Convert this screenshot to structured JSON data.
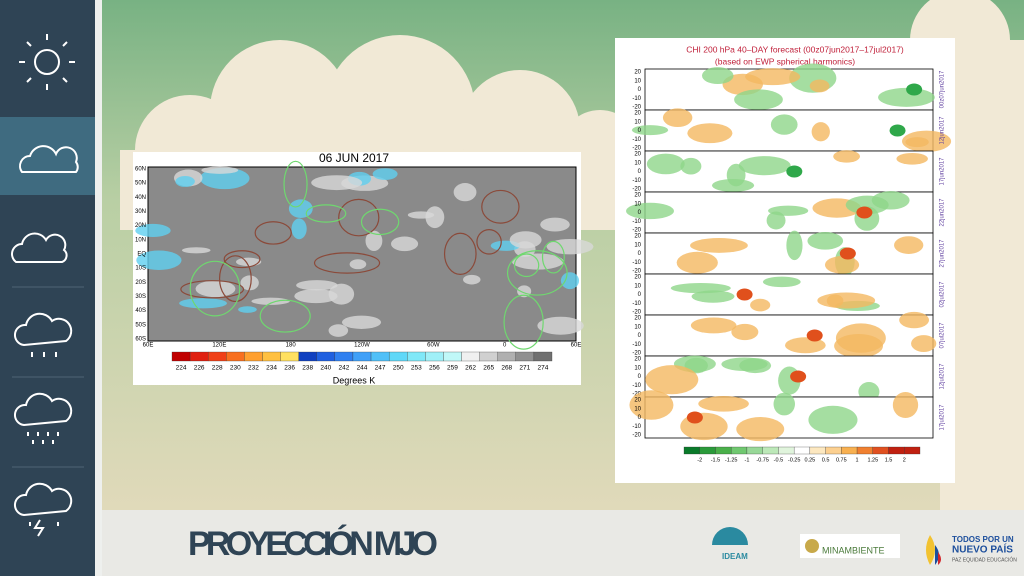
{
  "slide": {
    "title": "PROYECCIÓN MJO"
  },
  "left_map": {
    "title": "06 JUN 2017",
    "lat_labels": [
      "60N",
      "50N",
      "40N",
      "30N",
      "20N",
      "10N",
      "EQ",
      "10S",
      "20S",
      "30S",
      "40S",
      "50S",
      "60S"
    ],
    "lon_labels": [
      "60E",
      "120E",
      "180",
      "120W",
      "60W",
      "0",
      "60E"
    ],
    "scale_labels": [
      "224",
      "226",
      "228",
      "230",
      "232",
      "234",
      "236",
      "238",
      "240",
      "242",
      "244",
      "247",
      "250",
      "253",
      "256",
      "259",
      "262",
      "265",
      "268",
      "271",
      "274"
    ],
    "unit": "Degrees K"
  },
  "right_chart": {
    "title": "CHI 200 hPa 40–DAY forecast (00z07jun2017–17jul2017)",
    "subtitle": "(based on EWP spherical harmonics)",
    "panel_labels": [
      "00z07jun2017",
      "12jun2017",
      "17jun2017",
      "22jun2017",
      "27jun2017",
      "02jul2017",
      "07jul2017",
      "12jul2017",
      "17jul2017"
    ],
    "panel_yticks": [
      "20",
      "10",
      "0",
      "-10",
      "-20"
    ],
    "scale_labels": [
      "-2",
      "-1.5",
      "-1.25",
      "-1",
      "-0.75",
      "-0.5",
      "-0.25",
      "0.25",
      "0.5",
      "0.75",
      "1",
      "1.25",
      "1.5",
      "2"
    ]
  },
  "logos": {
    "ideam": "IDEAM",
    "minambiente": "MINAMBIENTE",
    "gov_line1": "TODOS POR UN",
    "gov_line2": "NUEVO PAÍS",
    "gov_line3": "PAZ  EQUIDAD  EDUCACIÓN"
  }
}
